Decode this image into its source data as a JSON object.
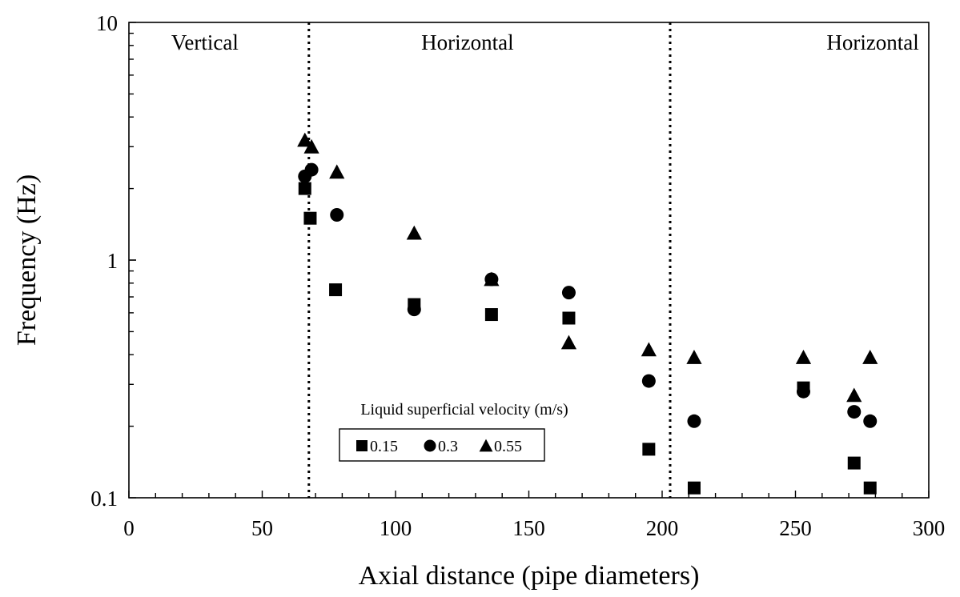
{
  "chart_data": {
    "type": "scatter",
    "xlabel": "Axial distance (pipe diameters)",
    "ylabel": "Frequency (Hz)",
    "xlim": [
      0,
      300
    ],
    "ylim": [
      0.1,
      10
    ],
    "yscale": "log",
    "x_ticks": [
      "0",
      "50",
      "100",
      "150",
      "200",
      "250",
      "300"
    ],
    "y_ticks": [
      "0.1",
      "1",
      "10"
    ],
    "grid": false,
    "region_dividers": [
      67.5,
      203
    ],
    "region_labels": [
      {
        "text": "Vertical",
        "x_center": 28.5
      },
      {
        "text": "Horizontal",
        "x_center": 127
      },
      {
        "text": "Horizontal",
        "x_center": 279
      }
    ],
    "legend": {
      "title": "Liquid superficial velocity (m/s)",
      "placement": "lower-center"
    },
    "series": [
      {
        "name": "0.15",
        "marker": "square",
        "points": [
          [
            66,
            2.0
          ],
          [
            68,
            1.5
          ],
          [
            77.5,
            0.75
          ],
          [
            107,
            0.65
          ],
          [
            136,
            0.59
          ],
          [
            165,
            0.57
          ],
          [
            195,
            0.16
          ],
          [
            212,
            0.11
          ],
          [
            253,
            0.29
          ],
          [
            272,
            0.14
          ],
          [
            278,
            0.11
          ]
        ]
      },
      {
        "name": "0.3",
        "marker": "circle",
        "points": [
          [
            66,
            2.25
          ],
          [
            68.5,
            2.4
          ],
          [
            78,
            1.55
          ],
          [
            107,
            0.62
          ],
          [
            136,
            0.83
          ],
          [
            165,
            0.73
          ],
          [
            195,
            0.31
          ],
          [
            212,
            0.21
          ],
          [
            253,
            0.28
          ],
          [
            272,
            0.23
          ],
          [
            278,
            0.21
          ]
        ]
      },
      {
        "name": "0.55",
        "marker": "triangle",
        "points": [
          [
            66,
            3.2
          ],
          [
            68.5,
            3.0
          ],
          [
            78,
            2.35
          ],
          [
            107,
            1.3
          ],
          [
            136,
            0.83
          ],
          [
            165,
            0.45
          ],
          [
            195,
            0.42
          ],
          [
            212,
            0.39
          ],
          [
            253,
            0.39
          ],
          [
            272,
            0.27
          ],
          [
            278,
            0.39
          ]
        ]
      }
    ]
  }
}
